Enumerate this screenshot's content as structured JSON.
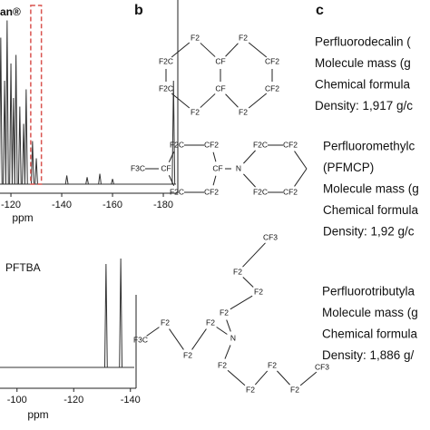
{
  "panel_labels": [
    "b",
    "c"
  ],
  "spectra": [
    {
      "title": "an®",
      "xlabel": "ppm",
      "xlim": [
        -115.7,
        -185.7
      ],
      "xticks": [
        -120,
        -140,
        -160,
        -180
      ],
      "highlight": [
        -127.8,
        -132
      ],
      "peaks": [
        {
          "ppm": -116,
          "intensity": 0.85
        },
        {
          "ppm": -117.5,
          "intensity": 0.6
        },
        {
          "ppm": -118.5,
          "intensity": 0.95
        },
        {
          "ppm": -120,
          "intensity": 0.7
        },
        {
          "ppm": -121,
          "intensity": 0.5
        },
        {
          "ppm": -122,
          "intensity": 0.75
        },
        {
          "ppm": -123.5,
          "intensity": 0.45
        },
        {
          "ppm": -125,
          "intensity": 0.35
        },
        {
          "ppm": -126,
          "intensity": 0.55
        },
        {
          "ppm": -128.5,
          "intensity": 0.25
        },
        {
          "ppm": -130,
          "intensity": 0.15
        },
        {
          "ppm": -142,
          "intensity": 0.05
        },
        {
          "ppm": -150,
          "intensity": 0.04
        },
        {
          "ppm": -155,
          "intensity": 0.06
        },
        {
          "ppm": -160,
          "intensity": 0.03
        },
        {
          "ppm": -184,
          "intensity": 0.6
        }
      ]
    },
    {
      "title": "PFTBA",
      "xlabel": "ppm",
      "xlim": [
        -94,
        -142
      ],
      "xticks": [
        -100,
        -120,
        -140
      ],
      "peaks": [
        {
          "ppm": -131.4,
          "intensity": 0.95
        },
        {
          "ppm": -136.6,
          "intensity": 1
        }
      ]
    }
  ],
  "structures": [
    {
      "labels": [
        "F2",
        "F2",
        "F2C",
        "CF",
        "CF2",
        "F2C",
        "CF",
        "CF2",
        "F2",
        "F2"
      ]
    },
    {
      "labels": [
        "F2C",
        "CF2",
        "F2C",
        "CF2",
        "F3C",
        "CF",
        "CF",
        "N",
        "F2C",
        "CF2",
        "F2C",
        "CF2"
      ]
    },
    {
      "labels": [
        "CF3",
        "F2",
        "F2",
        "F2",
        "F3C",
        "F2",
        "F2",
        "F2",
        "N",
        "F2",
        "F2",
        "F2",
        "F2",
        "CF3"
      ]
    }
  ],
  "compounds": [
    {
      "lines": [
        "Perfluorodecalin (",
        "Molecule mass (g",
        "Chemical formula",
        "Density: 1,917 g/c"
      ]
    },
    {
      "lines": [
        "Perfluoromethylc",
        "(PFMCP)",
        "Molecule mass (g",
        "Chemical formula",
        "Density: 1,92 g/c"
      ]
    },
    {
      "lines": [
        "Perfluorotributyla",
        "Molecule mass (g",
        "Chemical formula",
        "Density: 1,886 g/"
      ]
    }
  ]
}
